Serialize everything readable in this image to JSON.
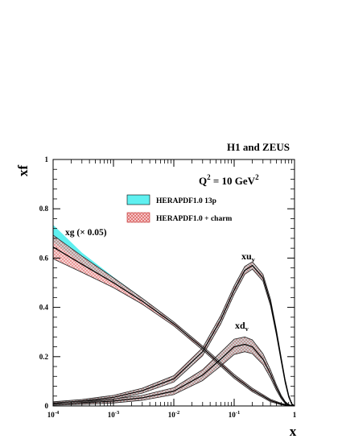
{
  "chart_data": {
    "type": "area",
    "header": "H1 and ZEUS",
    "scale_label": {
      "prefix": "Q",
      "sup": "2",
      "mid": " = 10 GeV",
      "sup2": "2"
    },
    "xlabel": "x",
    "ylabel": "xf",
    "x_scale": "log",
    "xlim": [
      0.0001,
      1
    ],
    "ylim": [
      0,
      1
    ],
    "x_ticks": [
      {
        "value": 0.0001,
        "base": "10",
        "exp": "-4"
      },
      {
        "value": 0.001,
        "base": "10",
        "exp": "-3"
      },
      {
        "value": 0.01,
        "base": "10",
        "exp": "-2"
      },
      {
        "value": 0.1,
        "base": "10",
        "exp": "-1"
      },
      {
        "value": 1,
        "base": "1",
        "exp": ""
      }
    ],
    "y_ticks": [
      {
        "value": 0,
        "label": "0"
      },
      {
        "value": 0.2,
        "label": "0.2"
      },
      {
        "value": 0.4,
        "label": "0.4"
      },
      {
        "value": 0.6,
        "label": "0.6"
      },
      {
        "value": 0.8,
        "label": "0.8"
      },
      {
        "value": 1,
        "label": "1"
      }
    ],
    "legend": {
      "placement": "top-right",
      "entries": [
        {
          "label": "HERAPDF1.0 13p",
          "fill": "#5ff0f0",
          "style": "solid"
        },
        {
          "label": "HERAPDF1.0 + charm",
          "fill": "#f2b5b5",
          "style": "hatched"
        }
      ]
    },
    "series": [
      {
        "id": "xg",
        "label": {
          "main": "xg (× 0.05)",
          "sub": ""
        },
        "x": [
          0.0001,
          0.0003,
          0.001,
          0.003,
          0.01,
          0.03,
          0.1,
          0.2,
          0.4,
          0.6,
          0.8,
          1.0
        ],
        "y13p": [
          0.7,
          0.6,
          0.51,
          0.43,
          0.335,
          0.235,
          0.12,
          0.065,
          0.022,
          0.008,
          0.002,
          0
        ],
        "err13p": [
          0.035,
          0.022,
          0.013,
          0.008,
          0.006,
          0.006,
          0.006,
          0.005,
          0.004,
          0.002,
          0.001,
          0
        ],
        "ycharm": [
          0.645,
          0.575,
          0.5,
          0.425,
          0.333,
          0.235,
          0.12,
          0.065,
          0.022,
          0.008,
          0.002,
          0
        ],
        "errcharm": [
          0.048,
          0.033,
          0.02,
          0.012,
          0.008,
          0.008,
          0.008,
          0.007,
          0.005,
          0.003,
          0.001,
          0
        ]
      },
      {
        "id": "xuv",
        "label": {
          "main": "xu",
          "sub": "v"
        },
        "x": [
          0.0001,
          0.0003,
          0.001,
          0.003,
          0.01,
          0.03,
          0.06,
          0.1,
          0.15,
          0.2,
          0.3,
          0.4,
          0.5,
          0.6,
          0.7,
          0.8,
          0.9,
          1.0
        ],
        "y13p": [
          0.012,
          0.02,
          0.035,
          0.062,
          0.11,
          0.22,
          0.35,
          0.47,
          0.55,
          0.57,
          0.52,
          0.42,
          0.3,
          0.19,
          0.1,
          0.04,
          0.008,
          0
        ],
        "err13p": [
          0.004,
          0.005,
          0.007,
          0.009,
          0.012,
          0.015,
          0.016,
          0.016,
          0.015,
          0.014,
          0.013,
          0.012,
          0.01,
          0.008,
          0.006,
          0.004,
          0.002,
          0
        ],
        "ycharm": [
          0.012,
          0.02,
          0.035,
          0.062,
          0.11,
          0.22,
          0.35,
          0.47,
          0.55,
          0.57,
          0.52,
          0.42,
          0.3,
          0.19,
          0.1,
          0.04,
          0.008,
          0
        ],
        "errcharm": [
          0.005,
          0.006,
          0.008,
          0.01,
          0.013,
          0.016,
          0.017,
          0.017,
          0.016,
          0.015,
          0.014,
          0.013,
          0.011,
          0.009,
          0.007,
          0.005,
          0.002,
          0
        ]
      },
      {
        "id": "xdv",
        "label": {
          "main": "xd",
          "sub": "v"
        },
        "x": [
          0.0001,
          0.0003,
          0.001,
          0.003,
          0.01,
          0.03,
          0.06,
          0.1,
          0.15,
          0.2,
          0.3,
          0.4,
          0.5,
          0.6,
          0.7,
          0.8,
          0.9,
          1.0
        ],
        "y13p": [
          0.008,
          0.012,
          0.02,
          0.033,
          0.06,
          0.125,
          0.19,
          0.24,
          0.25,
          0.24,
          0.19,
          0.13,
          0.075,
          0.037,
          0.014,
          0.004,
          0.001,
          0
        ],
        "err13p": [
          0.004,
          0.005,
          0.007,
          0.009,
          0.012,
          0.02,
          0.026,
          0.029,
          0.028,
          0.026,
          0.02,
          0.015,
          0.01,
          0.006,
          0.003,
          0.002,
          0.001,
          0
        ],
        "ycharm": [
          0.008,
          0.012,
          0.02,
          0.033,
          0.06,
          0.125,
          0.19,
          0.24,
          0.25,
          0.24,
          0.19,
          0.13,
          0.075,
          0.037,
          0.014,
          0.004,
          0.001,
          0
        ],
        "errcharm": [
          0.005,
          0.006,
          0.008,
          0.01,
          0.014,
          0.022,
          0.028,
          0.031,
          0.03,
          0.028,
          0.022,
          0.016,
          0.011,
          0.007,
          0.004,
          0.002,
          0.001,
          0
        ]
      }
    ]
  }
}
